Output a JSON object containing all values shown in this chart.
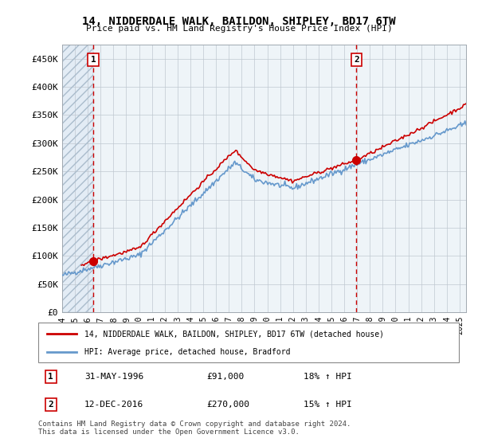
{
  "title": "14, NIDDERDALE WALK, BAILDON, SHIPLEY, BD17 6TW",
  "subtitle": "Price paid vs. HM Land Registry's House Price Index (HPI)",
  "ylim": [
    0,
    475000
  ],
  "yticks": [
    0,
    50000,
    100000,
    150000,
    200000,
    250000,
    300000,
    350000,
    400000,
    450000
  ],
  "ytick_labels": [
    "£0",
    "£50K",
    "£100K",
    "£150K",
    "£200K",
    "£250K",
    "£300K",
    "£350K",
    "£400K",
    "£450K"
  ],
  "xlim_start": 1994.0,
  "xlim_end": 2025.5,
  "xticks": [
    1994,
    1995,
    1996,
    1997,
    1998,
    1999,
    2000,
    2001,
    2002,
    2003,
    2004,
    2005,
    2006,
    2007,
    2008,
    2009,
    2010,
    2011,
    2012,
    2013,
    2014,
    2015,
    2016,
    2017,
    2018,
    2019,
    2020,
    2021,
    2022,
    2023,
    2024,
    2025
  ],
  "sale1_x": 1996.42,
  "sale1_y": 91000,
  "sale1_label": "1",
  "sale2_x": 2016.95,
  "sale2_y": 270000,
  "sale2_label": "2",
  "sale_color": "#cc0000",
  "vline_color": "#cc0000",
  "hpi_color": "#6699cc",
  "property_color": "#cc0000",
  "legend_line1": "14, NIDDERDALE WALK, BAILDON, SHIPLEY, BD17 6TW (detached house)",
  "legend_line2": "HPI: Average price, detached house, Bradford",
  "table_row1": [
    "1",
    "31-MAY-1996",
    "£91,000",
    "18% ↑ HPI"
  ],
  "table_row2": [
    "2",
    "12-DEC-2016",
    "£270,000",
    "15% ↑ HPI"
  ],
  "footnote": "Contains HM Land Registry data © Crown copyright and database right 2024.\nThis data is licensed under the Open Government Licence v3.0.",
  "grid_color": "#c0c8d0"
}
